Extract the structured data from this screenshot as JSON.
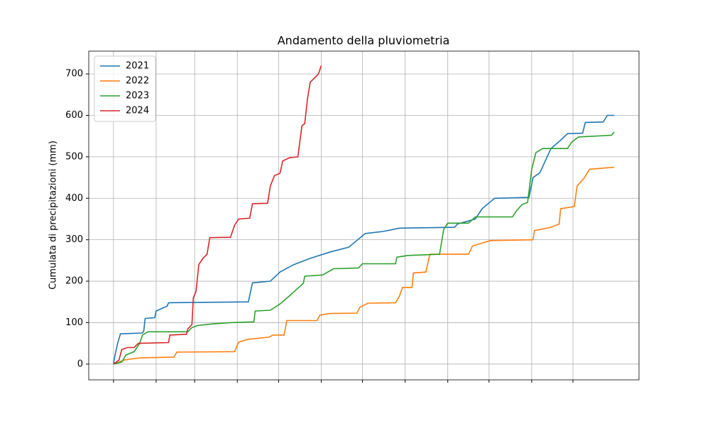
{
  "chart_data": {
    "type": "line",
    "title": "Andamento della pluviometria",
    "y_label": "Cumulata di precipitazioni (mm)",
    "xlim": [
      -18,
      382
    ],
    "xticks": [
      0,
      31,
      59,
      90,
      120,
      151,
      181,
      212,
      243,
      273,
      304,
      334
    ],
    "ylim": [
      -38,
      755
    ],
    "yticks": [
      0,
      100,
      200,
      300,
      400,
      500,
      600,
      700
    ],
    "grid": true,
    "legend": "upper-left",
    "series": [
      {
        "name": "2021",
        "color": "#1f77b4",
        "x": [
          0,
          1,
          3,
          5,
          21,
          22,
          23,
          30,
          31,
          39,
          40,
          98,
          101,
          114,
          121,
          131,
          143,
          157,
          171,
          183,
          196,
          208,
          248,
          250,
          263,
          268,
          277,
          302,
          305,
          310,
          318,
          325,
          330,
          341,
          343,
          356,
          359,
          364
        ],
        "values": [
          0,
          20,
          50,
          73,
          75,
          80,
          110,
          112,
          128,
          140,
          148,
          150,
          196,
          200,
          222,
          240,
          255,
          270,
          282,
          315,
          320,
          328,
          330,
          338,
          350,
          375,
          400,
          402,
          450,
          462,
          520,
          540,
          556,
          557,
          583,
          584,
          600,
          600
        ]
      },
      {
        "name": "2022",
        "color": "#ff7f0e",
        "x": [
          0,
          8,
          19,
          44,
          46,
          88,
          91,
          98,
          113,
          116,
          124,
          126,
          148,
          150,
          157,
          177,
          179,
          185,
          205,
          208,
          210,
          217,
          218,
          227,
          230,
          258,
          261,
          266,
          274,
          305,
          306,
          318,
          324,
          325,
          335,
          337,
          342,
          346,
          364
        ],
        "values": [
          0,
          10,
          15,
          17,
          29,
          30,
          53,
          60,
          65,
          70,
          70,
          105,
          105,
          118,
          122,
          123,
          137,
          147,
          148,
          165,
          185,
          185,
          220,
          222,
          265,
          265,
          285,
          290,
          298,
          300,
          322,
          330,
          338,
          375,
          380,
          430,
          448,
          470,
          475
        ]
      },
      {
        "name": "2023",
        "color": "#2ca02c",
        "x": [
          0,
          6,
          9,
          15,
          19,
          21,
          25,
          54,
          57,
          61,
          72,
          85,
          102,
          103,
          114,
          121,
          128,
          133,
          138,
          139,
          152,
          160,
          178,
          181,
          205,
          206,
          214,
          237,
          240,
          243,
          258,
          263,
          290,
          293,
          297,
          301,
          304,
          307,
          312,
          330,
          333,
          338,
          362,
          364
        ],
        "values": [
          0,
          5,
          22,
          30,
          50,
          70,
          78,
          78,
          88,
          93,
          97,
          100,
          102,
          128,
          130,
          145,
          165,
          180,
          195,
          212,
          215,
          230,
          232,
          242,
          242,
          258,
          262,
          265,
          325,
          340,
          340,
          355,
          355,
          370,
          385,
          390,
          470,
          510,
          520,
          520,
          535,
          548,
          552,
          560
        ]
      },
      {
        "name": "2024",
        "color": "#d62728",
        "x": [
          0,
          4,
          6,
          10,
          15,
          18,
          40,
          41,
          53,
          54,
          57,
          58,
          60,
          62,
          65,
          68,
          70,
          85,
          88,
          91,
          99,
          101,
          112,
          114,
          117,
          121,
          123,
          128,
          134,
          137,
          139,
          141,
          143,
          146,
          149,
          151
        ],
        "values": [
          0,
          10,
          35,
          40,
          40,
          50,
          52,
          70,
          72,
          85,
          95,
          160,
          175,
          240,
          255,
          265,
          305,
          306,
          335,
          350,
          352,
          387,
          388,
          430,
          455,
          460,
          490,
          498,
          500,
          575,
          580,
          640,
          680,
          690,
          700,
          720
        ]
      }
    ]
  }
}
